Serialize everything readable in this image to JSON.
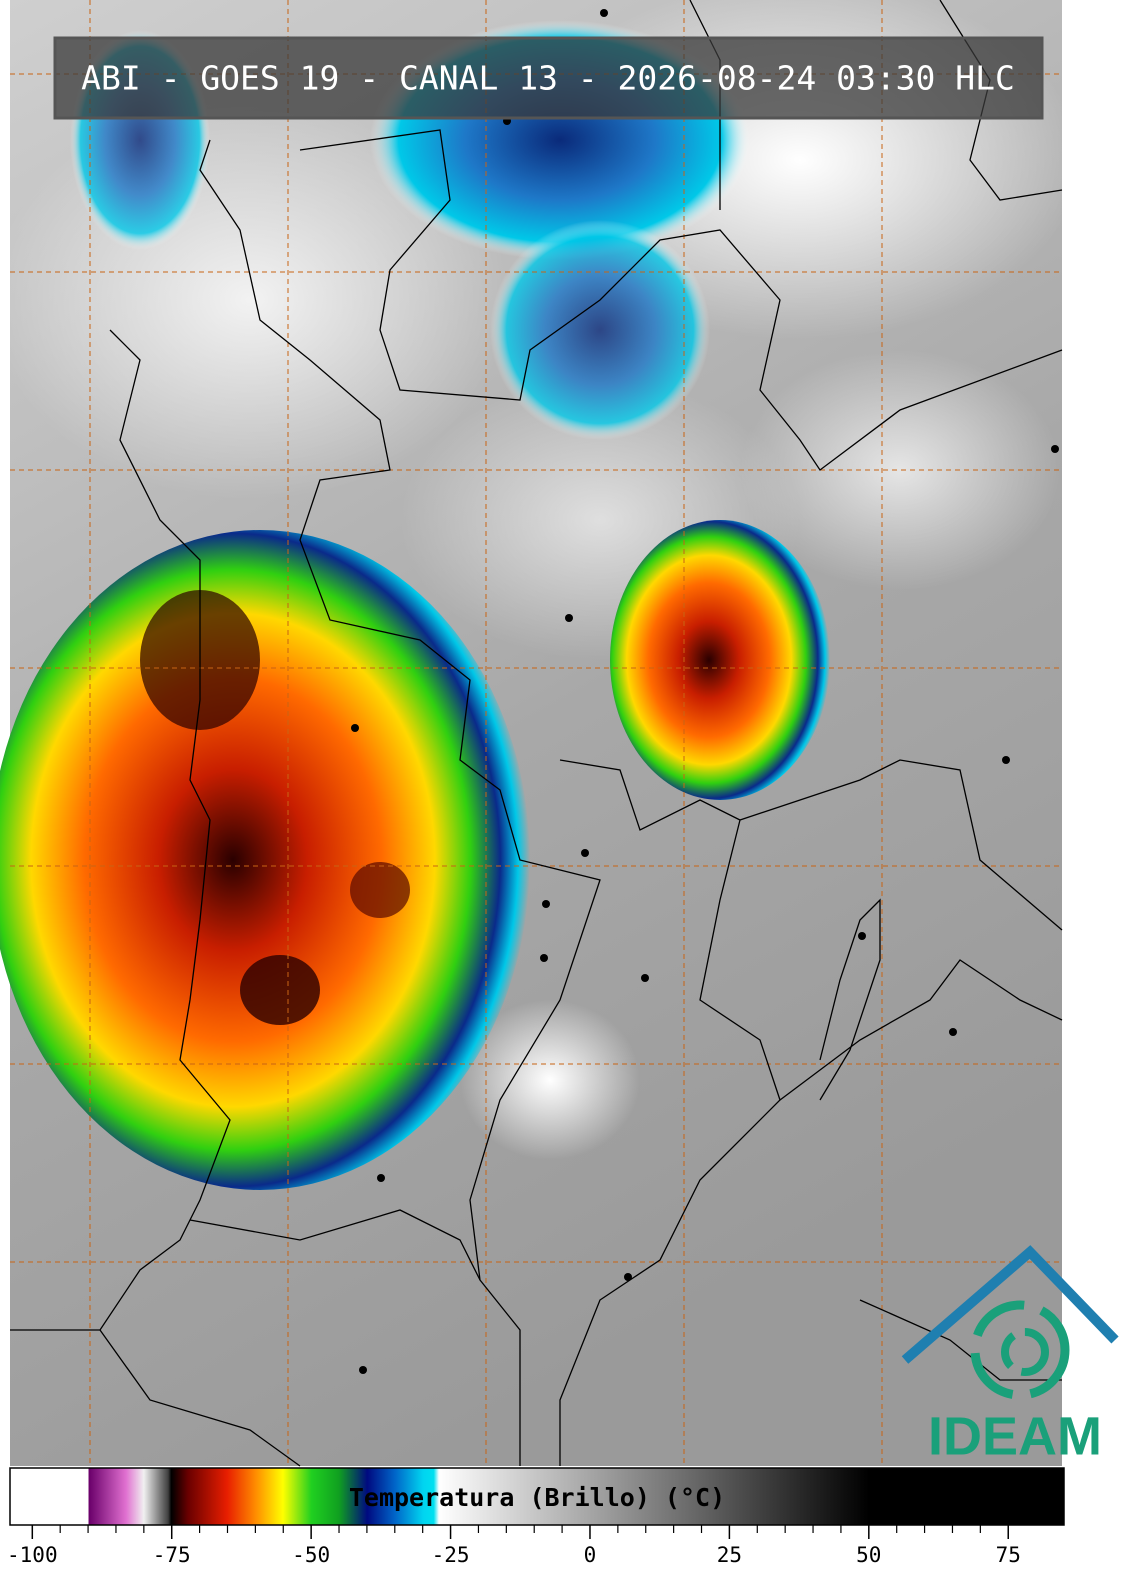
{
  "header": {
    "title": "ABI - GOES 19 - CANAL 13 - 2026-08-24 03:30 HLC"
  },
  "colorbar": {
    "label": "Temperatura (Brillo) (°C)",
    "xlim": [
      -104,
      85
    ],
    "ticks": [
      -100,
      -75,
      -50,
      -25,
      0,
      25,
      50,
      75
    ]
  },
  "logo": {
    "text": "IDEAM"
  }
}
